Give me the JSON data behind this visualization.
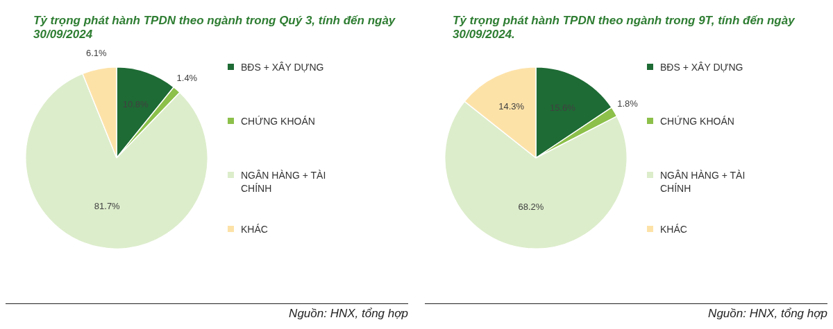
{
  "chart_data": [
    {
      "type": "pie",
      "title": "Tỷ trọng phát hành TPDN theo ngành trong Quý 3, tính đến ngày 30/09/2024",
      "categories": [
        "BĐS + XÂY DỰNG",
        "CHỨNG KHOÁN",
        "NGÂN HÀNG + TÀI CHÍNH",
        "KHÁC"
      ],
      "values": [
        10.8,
        1.4,
        81.7,
        6.1
      ],
      "colors": [
        "#1e6b35",
        "#8cc04a",
        "#dcedcb",
        "#fde2a8"
      ],
      "value_labels": [
        "10.8%",
        "1.4%",
        "81.7%",
        "6.1%"
      ],
      "legend": "right",
      "annotations": [
        "Nguồn: HNX, tổng hợp"
      ]
    },
    {
      "type": "pie",
      "title": "Tỷ trọng phát hành TPDN theo ngành trong 9T, tính đến ngày 30/09/2024.",
      "categories": [
        "BĐS + XÂY DỰNG",
        "CHỨNG KHOÁN",
        "NGÂN HÀNG + TÀI CHÍNH",
        "KHÁC"
      ],
      "values": [
        15.6,
        1.8,
        68.2,
        14.3
      ],
      "colors": [
        "#1e6b35",
        "#8cc04a",
        "#dcedcb",
        "#fde2a8"
      ],
      "value_labels": [
        "15.6%",
        "1.8%",
        "68.2%",
        "14.3%"
      ],
      "legend": "right",
      "annotations": [
        "Nguồn: HNX, tổng hợp"
      ]
    }
  ]
}
